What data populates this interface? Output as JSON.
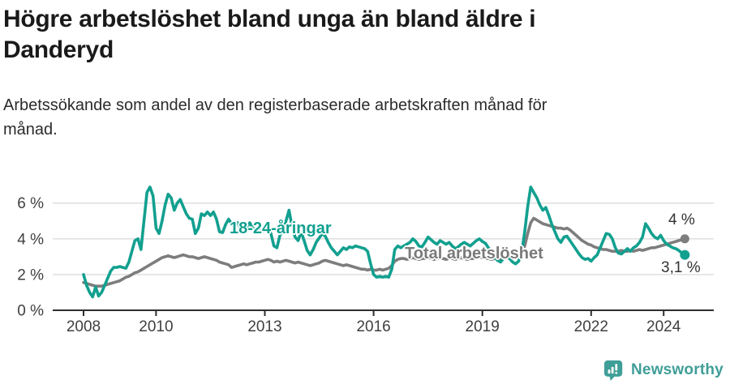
{
  "header": {
    "title_line1": "Högre arbetslöshet bland unga än bland äldre i",
    "title_line2": "Danderyd",
    "subtitle_line1": "Arbetssökande som andel av den registerbaserade arbetskraften månad för",
    "subtitle_line2": "månad."
  },
  "chart_data": {
    "type": "line",
    "title": "Högre arbetslöshet bland unga än bland äldre i Danderyd",
    "subtitle": "Arbetssökande som andel av den registerbaserade arbetskraften månad för månad.",
    "x_unit": "month",
    "x_start": "2008-01",
    "x_end": "2024-08",
    "y_unit": "%",
    "ylim": [
      0,
      7
    ],
    "grid": "horizontal",
    "y_axis": {
      "ticks": [
        {
          "value": 0,
          "label": "0 %"
        },
        {
          "value": 2,
          "label": "2 %"
        },
        {
          "value": 4,
          "label": "4 %"
        },
        {
          "value": 6,
          "label": "6 %"
        }
      ]
    },
    "x_axis": {
      "ticks": [
        {
          "value": 2008,
          "label": "2008"
        },
        {
          "value": 2010,
          "label": "2010"
        },
        {
          "value": 2013,
          "label": "2013"
        },
        {
          "value": 2016,
          "label": "2016"
        },
        {
          "value": 2019,
          "label": "2019"
        },
        {
          "value": 2022,
          "label": "2022"
        },
        {
          "value": 2024,
          "label": "2024"
        }
      ]
    },
    "series": [
      {
        "name": "18-24-åringar",
        "color": "#12a08f",
        "end_value": 3.1,
        "values": [
          2.0,
          1.4,
          1.0,
          0.75,
          1.3,
          0.8,
          1.0,
          1.4,
          1.8,
          2.2,
          2.4,
          2.4,
          2.45,
          2.4,
          2.35,
          2.7,
          3.3,
          3.9,
          4.0,
          3.4,
          5.0,
          6.6,
          6.9,
          6.4,
          4.6,
          4.3,
          5.0,
          5.9,
          6.5,
          6.3,
          5.6,
          6.0,
          6.2,
          5.8,
          5.4,
          5.15,
          5.1,
          4.3,
          4.6,
          5.4,
          5.3,
          5.5,
          5.3,
          5.5,
          5.1,
          4.4,
          4.35,
          4.8,
          5.1,
          4.85,
          4.65,
          4.9,
          4.6,
          4.4,
          4.65,
          4.9,
          4.6,
          4.45,
          4.5,
          4.4,
          4.45,
          4.6,
          4.3,
          3.6,
          3.5,
          4.2,
          4.5,
          5.0,
          5.6,
          4.7,
          4.1,
          3.9,
          4.4,
          3.9,
          3.35,
          3.1,
          3.4,
          3.8,
          4.05,
          4.3,
          4.15,
          3.8,
          3.5,
          3.3,
          3.1,
          3.3,
          3.5,
          3.4,
          3.55,
          3.5,
          3.6,
          3.55,
          3.5,
          3.45,
          3.3,
          2.6,
          2.0,
          1.85,
          1.9,
          1.85,
          1.9,
          1.85,
          2.3,
          3.4,
          3.6,
          3.5,
          3.6,
          3.7,
          3.8,
          4.0,
          3.85,
          3.6,
          3.55,
          3.8,
          4.1,
          3.95,
          3.8,
          3.7,
          3.9,
          3.8,
          3.7,
          3.8,
          3.6,
          3.45,
          3.55,
          3.7,
          3.8,
          3.7,
          3.6,
          3.75,
          3.9,
          4.0,
          3.85,
          3.75,
          3.5,
          3.3,
          3.0,
          2.8,
          2.7,
          2.9,
          3.0,
          2.9,
          2.7,
          2.6,
          2.75,
          3.2,
          4.4,
          5.8,
          6.9,
          6.6,
          6.3,
          5.9,
          5.6,
          5.75,
          5.3,
          4.8,
          4.4,
          4.0,
          3.8,
          4.1,
          4.15,
          3.9,
          3.65,
          3.4,
          3.15,
          2.95,
          2.85,
          2.9,
          2.75,
          2.95,
          3.1,
          3.5,
          3.9,
          4.3,
          4.25,
          4.0,
          3.5,
          3.2,
          3.15,
          3.3,
          3.45,
          3.3,
          3.5,
          3.6,
          3.8,
          4.1,
          4.85,
          4.6,
          4.3,
          4.1,
          4.0,
          4.2,
          3.9,
          3.7,
          3.6,
          3.5,
          3.45,
          3.35,
          3.2,
          3.1
        ]
      },
      {
        "name": "Total arbetslöshet",
        "color": "#7d7d7d",
        "end_value": 4.0,
        "values": [
          1.55,
          1.5,
          1.45,
          1.4,
          1.35,
          1.35,
          1.35,
          1.4,
          1.45,
          1.5,
          1.55,
          1.6,
          1.65,
          1.75,
          1.85,
          1.9,
          2.0,
          2.1,
          2.15,
          2.25,
          2.35,
          2.45,
          2.55,
          2.65,
          2.75,
          2.85,
          2.95,
          3.0,
          3.05,
          3.0,
          2.95,
          3.0,
          3.05,
          3.1,
          3.05,
          3.0,
          3.0,
          2.95,
          2.9,
          2.95,
          3.0,
          2.95,
          2.9,
          2.85,
          2.8,
          2.7,
          2.65,
          2.6,
          2.55,
          2.4,
          2.45,
          2.5,
          2.55,
          2.6,
          2.55,
          2.6,
          2.65,
          2.7,
          2.7,
          2.75,
          2.8,
          2.85,
          2.8,
          2.7,
          2.75,
          2.7,
          2.75,
          2.8,
          2.75,
          2.7,
          2.65,
          2.7,
          2.65,
          2.6,
          2.55,
          2.5,
          2.55,
          2.6,
          2.65,
          2.75,
          2.8,
          2.75,
          2.7,
          2.65,
          2.6,
          2.55,
          2.5,
          2.55,
          2.5,
          2.45,
          2.4,
          2.35,
          2.3,
          2.3,
          2.25,
          2.3,
          2.25,
          2.25,
          2.3,
          2.25,
          2.3,
          2.35,
          2.5,
          2.75,
          2.85,
          2.9,
          2.9,
          2.85,
          2.9,
          2.95,
          2.9,
          2.85,
          2.9,
          2.9,
          2.95,
          2.9,
          2.85,
          2.9,
          2.95,
          2.9,
          2.85,
          2.9,
          2.9,
          2.85,
          2.9,
          2.95,
          2.9,
          2.85,
          2.9,
          2.9,
          2.95,
          3.0,
          2.95,
          2.9,
          2.9,
          2.85,
          2.9,
          2.9,
          2.85,
          2.9,
          2.95,
          2.9,
          2.95,
          3.0,
          3.1,
          3.2,
          3.6,
          4.3,
          4.9,
          5.15,
          5.05,
          4.95,
          4.85,
          4.8,
          4.75,
          4.7,
          4.65,
          4.6,
          4.6,
          4.55,
          4.6,
          4.5,
          4.35,
          4.2,
          4.05,
          3.9,
          3.8,
          3.7,
          3.65,
          3.55,
          3.5,
          3.45,
          3.4,
          3.4,
          3.35,
          3.3,
          3.3,
          3.3,
          3.35,
          3.3,
          3.3,
          3.35,
          3.3,
          3.35,
          3.4,
          3.35,
          3.4,
          3.45,
          3.5,
          3.5,
          3.55,
          3.6,
          3.65,
          3.7,
          3.75,
          3.8,
          3.85,
          3.9,
          3.95,
          4.0
        ]
      }
    ],
    "annotations": {
      "end_value_total": "4 %",
      "end_value_young": "3,1 %"
    },
    "colors": {
      "young": "#12a08f",
      "total": "#7d7d7d",
      "gridline": "#dcdcdc",
      "axis": "#2e2e2e",
      "tick_label": "#3f3f3f"
    }
  },
  "footer": {
    "brand": "Newsworthy",
    "brand_color": "#3f9e98"
  }
}
